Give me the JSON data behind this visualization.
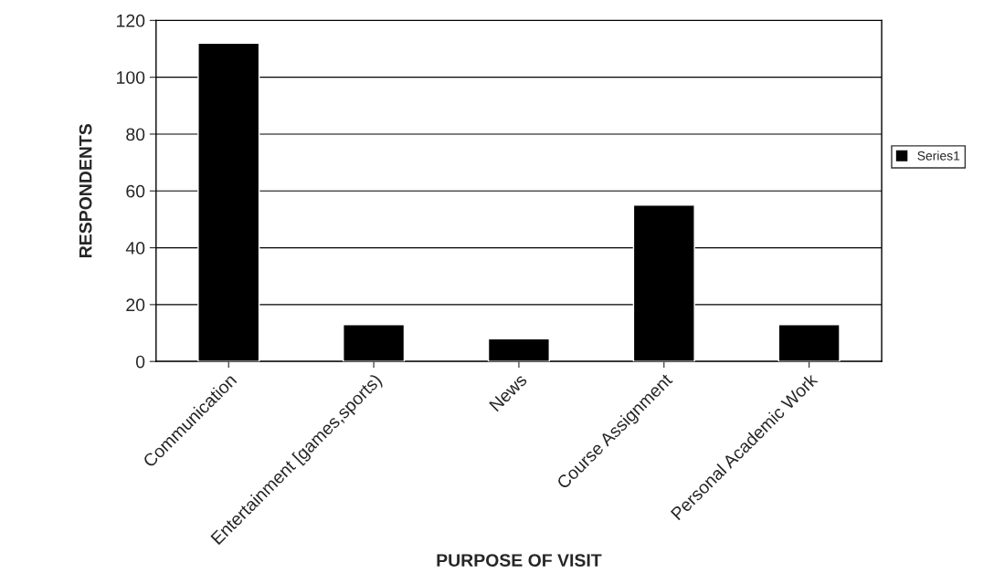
{
  "chart_data": {
    "type": "bar",
    "xlabel": "PURPOSE OF VISIT",
    "ylabel": "RESPONDENTS",
    "categories": [
      "Communication",
      "Entertainment [games,sports)",
      "News",
      "Course Assignment",
      "Personal Academic Work"
    ],
    "series": [
      {
        "name": "Series1",
        "color": "#000000",
        "values": [
          112,
          13,
          8,
          55,
          13
        ]
      }
    ],
    "ylim": [
      0,
      120
    ],
    "yticks": [
      0,
      20,
      40,
      60,
      80,
      100,
      120
    ],
    "grid": "y",
    "legend": "right"
  }
}
